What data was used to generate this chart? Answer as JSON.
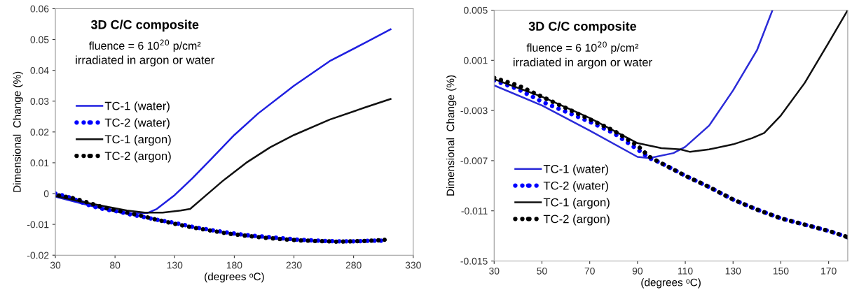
{
  "chart_data": [
    {
      "type": "line",
      "title": "3D C/C composite",
      "subtitle": "fluence = 6 10$^{20}$ p/cm²",
      "annotations": [
        "irradiated in argon or water"
      ],
      "xlabel": "(degrees ᵒC)",
      "ylabel": "Dimensional  Change (%)",
      "xlim": [
        30,
        330
      ],
      "xticks": [
        30,
        80,
        130,
        180,
        230,
        280,
        330
      ],
      "ylim": [
        -0.02,
        0.06
      ],
      "yticks": [
        {
          "value": -0.02,
          "label": "-0.02"
        },
        {
          "value": -0.01,
          "label": "-0.01"
        },
        0,
        0.01,
        0.02,
        0.03,
        0.04,
        0.05,
        0.06
      ],
      "grid": false,
      "legend": "left",
      "series": [
        {
          "name": "TC-1 (water)",
          "color": "#1f1fe0",
          "line_style": "solid",
          "x": [
            30,
            50,
            70,
            90,
            107,
            115,
            130,
            145,
            160,
            180,
            200,
            230,
            260,
            290,
            311
          ],
          "values": [
            -0.001,
            -0.003,
            -0.005,
            -0.0065,
            -0.0063,
            -0.005,
            -0.0005,
            0.005,
            0.011,
            0.019,
            0.026,
            0.035,
            0.043,
            0.049,
            0.0533
          ]
        },
        {
          "name": "TC-2 (water)",
          "color": "#0000ff",
          "line_style": "dotted",
          "x": [
            30,
            40,
            50,
            60,
            70,
            85,
            95,
            103,
            115,
            130,
            145,
            160,
            175,
            190,
            205,
            220,
            235,
            250,
            265,
            280,
            295,
            303
          ],
          "values": [
            0,
            -0.001,
            -0.0025,
            -0.004,
            -0.005,
            -0.006,
            -0.007,
            -0.0075,
            -0.0085,
            -0.0095,
            -0.0108,
            -0.0118,
            -0.0127,
            -0.0135,
            -0.014,
            -0.0145,
            -0.015,
            -0.0153,
            -0.0155,
            -0.0155,
            -0.0153,
            -0.0153
          ]
        },
        {
          "name": "TC-1 (argon)",
          "color": "#111111",
          "line_style": "solid",
          "x": [
            30,
            50,
            70,
            90,
            105,
            120,
            135,
            143,
            155,
            170,
            190,
            210,
            230,
            260,
            290,
            311
          ],
          "values": [
            -0.0008,
            -0.0025,
            -0.004,
            -0.0055,
            -0.0062,
            -0.0062,
            -0.0055,
            -0.005,
            -0.001,
            0.004,
            0.01,
            0.015,
            0.019,
            0.024,
            0.028,
            0.0307
          ]
        },
        {
          "name": "TC-2 (argon)",
          "color": "#000000",
          "line_style": "dotted",
          "x": [
            33,
            45,
            58,
            70,
            85,
            100,
            115,
            130,
            145,
            160,
            175,
            190,
            205,
            220,
            235,
            250,
            265,
            280,
            295,
            306
          ],
          "values": [
            -0.0006,
            -0.0015,
            -0.003,
            -0.0045,
            -0.0058,
            -0.007,
            -0.0085,
            -0.0098,
            -0.011,
            -0.012,
            -0.013,
            -0.0137,
            -0.0143,
            -0.0148,
            -0.0152,
            -0.0154,
            -0.0156,
            -0.0155,
            -0.0153,
            -0.015
          ]
        }
      ]
    },
    {
      "type": "line",
      "title": "3D C/C composite",
      "subtitle": "fluence = 6 10$^{20}$ p/cm²",
      "annotations": [
        "irradiated in argon or water"
      ],
      "xlabel": "(degrees ᵒC)",
      "ylabel": "Dimensional  Change (%)",
      "xlim": [
        30,
        178
      ],
      "xticks": [
        30,
        50,
        70,
        90,
        110,
        130,
        150,
        170
      ],
      "ylim": [
        -0.015,
        0.005
      ],
      "yticks": [
        {
          "value": -0.015,
          "label": "-0.015"
        },
        {
          "value": -0.011,
          "label": "-0.011"
        },
        {
          "value": -0.007,
          "label": "-0.007"
        },
        {
          "value": -0.003,
          "label": "-0.003"
        },
        0.001,
        0.005
      ],
      "grid": false,
      "legend": "bottom left",
      "series": [
        {
          "name": "TC-1 (water)",
          "color": "#2b2bd8",
          "line_style": "solid",
          "x": [
            30,
            50,
            70,
            90,
            95,
            105,
            110,
            120,
            130,
            140,
            146.5
          ],
          "values": [
            -0.001,
            -0.0026,
            -0.0046,
            -0.0067,
            -0.0068,
            -0.0064,
            -0.0059,
            -0.0042,
            -0.0014,
            0.0018,
            0.005
          ]
        },
        {
          "name": "TC-2 (water)",
          "color": "#0000ff",
          "line_style": "dotted",
          "x": [
            30,
            40,
            50,
            60,
            70,
            80,
            90,
            95,
            100,
            110,
            120,
            130,
            140,
            150,
            160,
            170,
            178
          ],
          "values": [
            -0.0006,
            -0.0013,
            -0.0023,
            -0.0031,
            -0.0039,
            -0.0048,
            -0.0061,
            -0.0068,
            -0.0072,
            -0.0082,
            -0.0091,
            -0.0101,
            -0.0109,
            -0.0116,
            -0.0121,
            -0.0126,
            -0.0131
          ]
        },
        {
          "name": "TC-1 (argon)",
          "color": "#111111",
          "line_style": "solid",
          "x": [
            30,
            50,
            70,
            90,
            100,
            108,
            112,
            120,
            130,
            138,
            143,
            150,
            160,
            170,
            178
          ],
          "values": [
            -0.0005,
            -0.0019,
            -0.0036,
            -0.0056,
            -0.006,
            -0.0061,
            -0.0063,
            -0.0061,
            -0.0057,
            -0.0052,
            -0.0048,
            -0.0034,
            -0.0008,
            0.0024,
            0.005
          ]
        },
        {
          "name": "TC-2 (argon)",
          "color": "#000000",
          "line_style": "dotted",
          "x": [
            30,
            40,
            50,
            60,
            70,
            80,
            90,
            95,
            100,
            110,
            120,
            130,
            140,
            150,
            160,
            170,
            178
          ],
          "values": [
            -0.0004,
            -0.001,
            -0.0019,
            -0.0028,
            -0.0037,
            -0.0046,
            -0.0058,
            -0.0067,
            -0.0072,
            -0.0082,
            -0.0091,
            -0.0101,
            -0.0109,
            -0.0116,
            -0.0121,
            -0.0126,
            -0.0131
          ]
        }
      ]
    }
  ]
}
